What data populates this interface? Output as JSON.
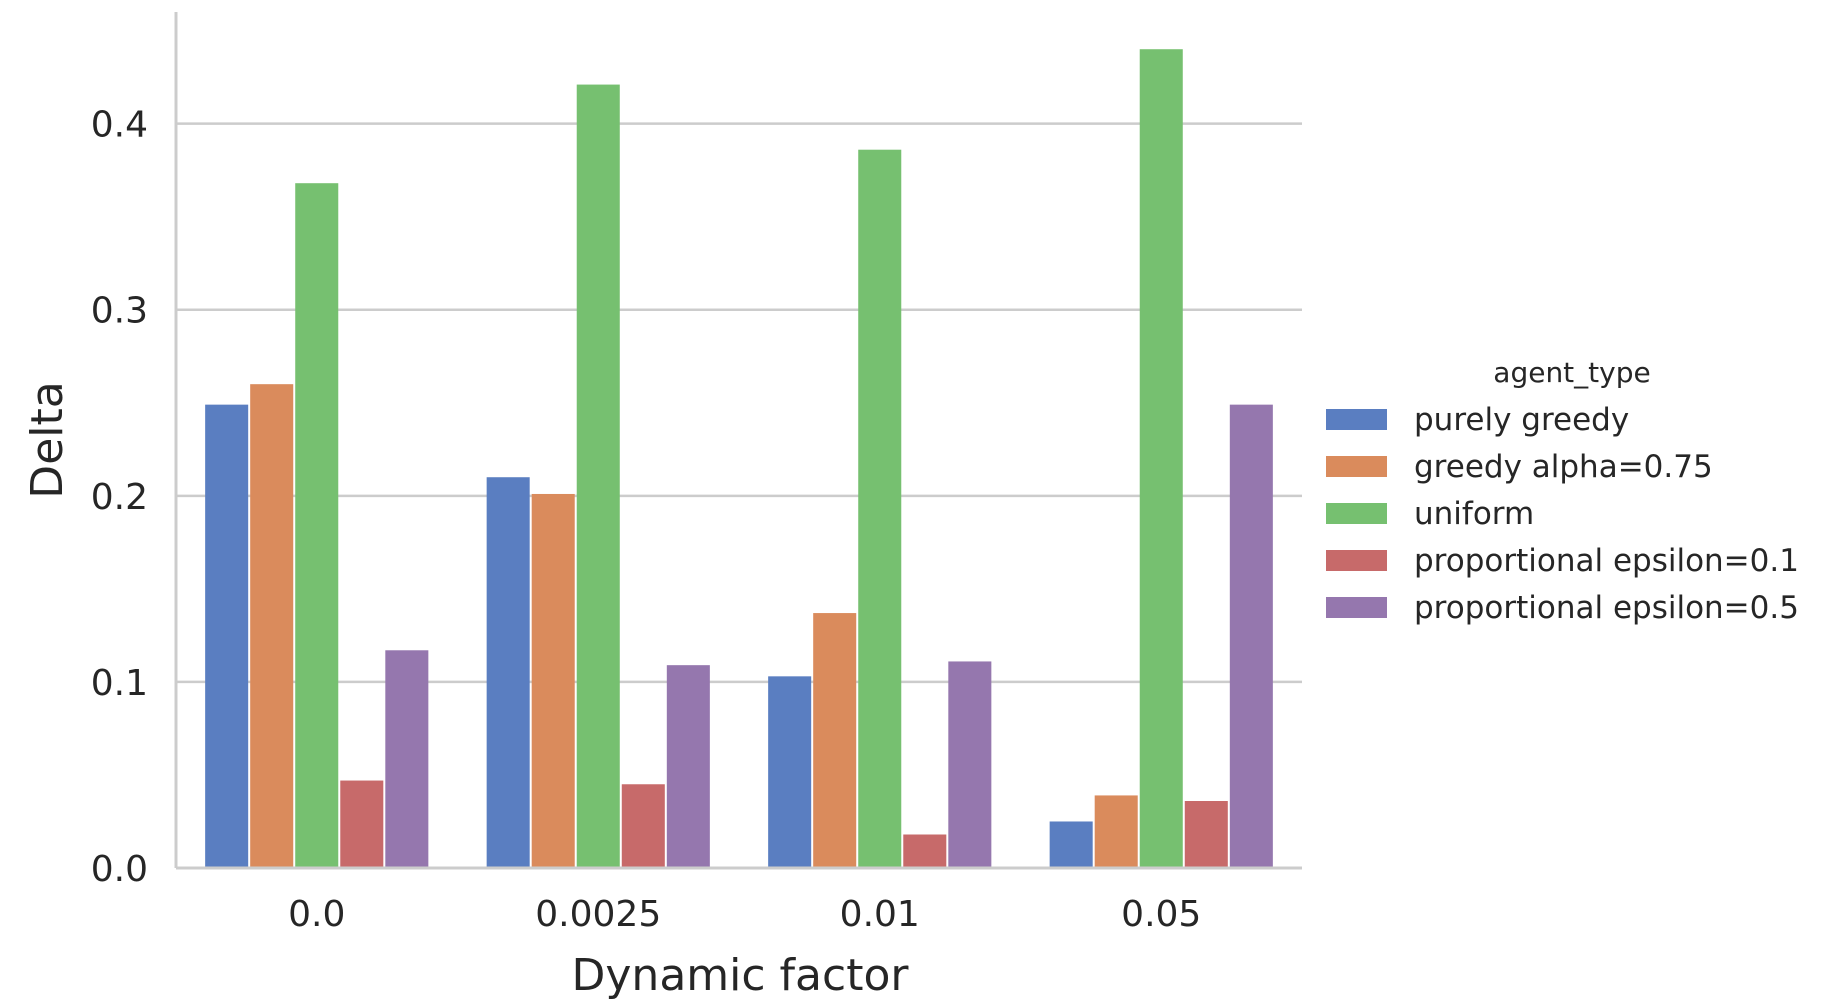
{
  "chart_data": {
    "type": "bar",
    "xlabel": "Dynamic factor",
    "ylabel": "Delta",
    "categories": [
      "0.0",
      "0.0025",
      "0.01",
      "0.05"
    ],
    "ylim": [
      0,
      0.46
    ],
    "yticks": [
      "0.0",
      "0.1",
      "0.2",
      "0.3",
      "0.4"
    ],
    "grid": "horizontal",
    "legend": {
      "title": "agent_type",
      "placement": "right"
    },
    "series": [
      {
        "name": "purely greedy",
        "color": "#5a7ec1",
        "values": [
          0.249,
          0.21,
          0.103,
          0.025
        ]
      },
      {
        "name": "greedy alpha=0.75",
        "color": "#da8b5c",
        "values": [
          0.26,
          0.201,
          0.137,
          0.039
        ]
      },
      {
        "name": "uniform",
        "color": "#76c070",
        "values": [
          0.368,
          0.421,
          0.386,
          0.44
        ]
      },
      {
        "name": "proportional epsilon=0.1",
        "color": "#c76a6a",
        "values": [
          0.047,
          0.045,
          0.018,
          0.036
        ]
      },
      {
        "name": "proportional epsilon=0.5",
        "color": "#9577ae",
        "values": [
          0.117,
          0.109,
          0.111,
          0.249
        ]
      }
    ]
  }
}
